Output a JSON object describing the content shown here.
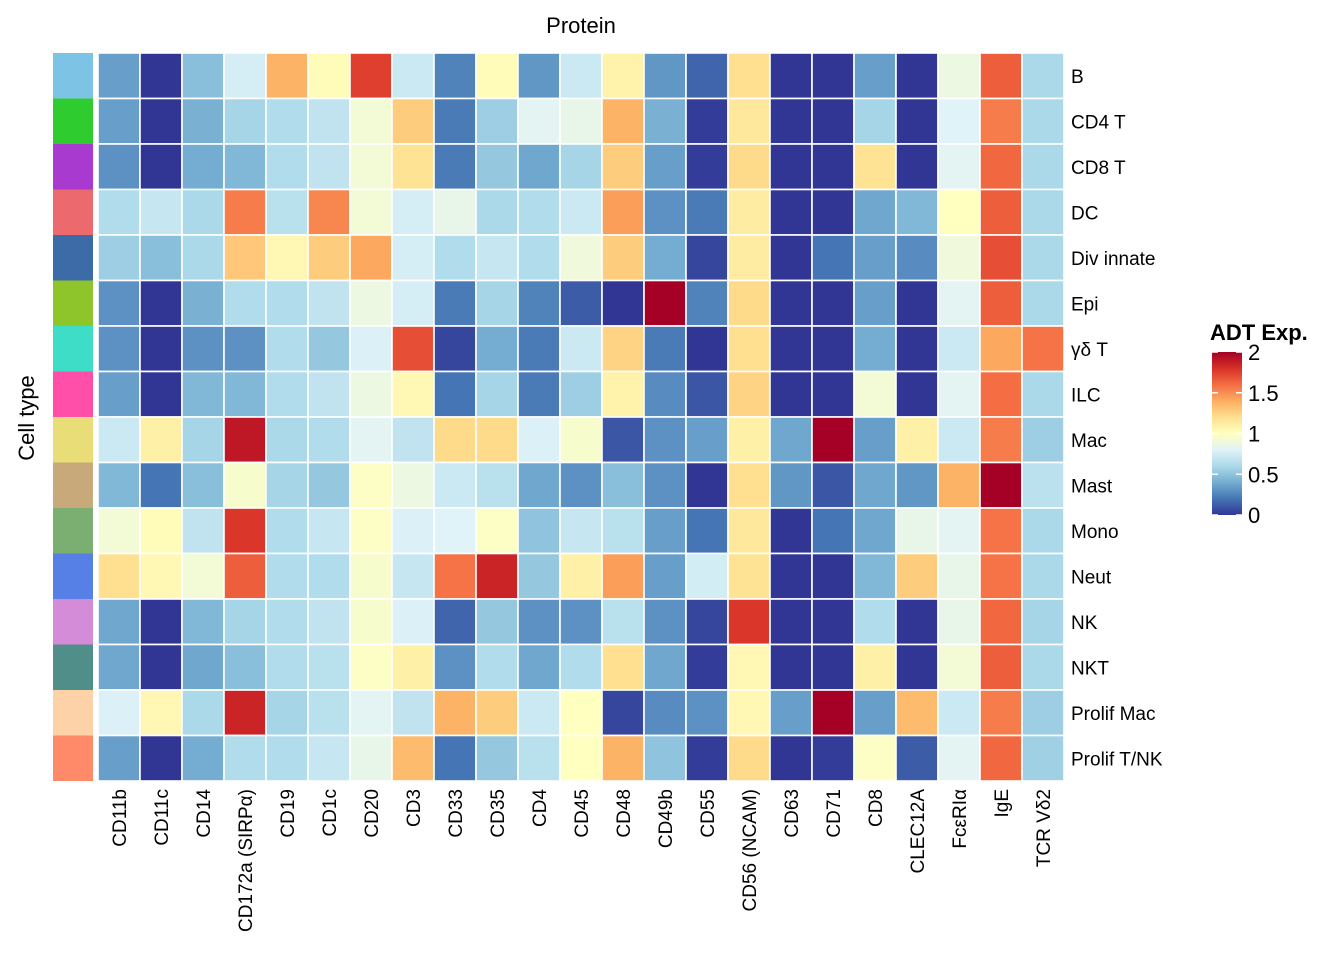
{
  "chart_data": {
    "type": "heatmap",
    "title": "Protein",
    "ylabel": "Cell type",
    "legend_title": "ADT Exp.",
    "legend_position": "right",
    "color_scale": {
      "name": "RdYlBu (reversed)",
      "range": [
        0,
        2
      ],
      "stops": [
        "#313695",
        "#4575b4",
        "#74add1",
        "#abd9e9",
        "#e0f3f8",
        "#ffffbf",
        "#fee090",
        "#fdae61",
        "#f46d43",
        "#d73027",
        "#a50026"
      ],
      "ticks": [
        0,
        0.5,
        1,
        1.5,
        2
      ],
      "tick_labels": [
        "0",
        "0.5",
        "1",
        "1.5",
        "2"
      ]
    },
    "columns": [
      "CD11b",
      "CD11c",
      "CD14",
      "CD172a (SIRPα)",
      "CD19",
      "CD1c",
      "CD20",
      "CD3",
      "CD33",
      "CD35",
      "CD4",
      "CD45",
      "CD48",
      "CD49b",
      "CD55",
      "CD56 (NCAM)",
      "CD63",
      "CD71",
      "CD8",
      "CLEC12A",
      "FcεRIα",
      "IgE",
      "TCR Vδ2"
    ],
    "rows": [
      "B",
      "CD4 T",
      "CD8 T",
      "DC",
      "Div innate",
      "Epi",
      "γδ T",
      "ILC",
      "Mac",
      "Mast",
      "Mono",
      "Neut",
      "NK",
      "NKT",
      "Prolif Mac",
      "Prolif T/NK"
    ],
    "row_annotation_colors": [
      "#7CC3E6",
      "#2ECC2E",
      "#A93ACF",
      "#EC6A6E",
      "#3D6BA8",
      "#8DC52A",
      "#3EDDC8",
      "#FF4FA8",
      "#E8DD76",
      "#C8A97A",
      "#7BAF72",
      "#5780E6",
      "#D58CD8",
      "#4F8E89",
      "#FDD2A8",
      "#FF8A6A"
    ],
    "values": [
      [
        0.35,
        0.0,
        0.48,
        0.76,
        1.38,
        1.02,
        1.75,
        0.72,
        0.25,
        1.02,
        0.32,
        0.72,
        1.08,
        0.32,
        0.15,
        1.2,
        0.0,
        0.0,
        0.35,
        0.0,
        0.88,
        1.65,
        0.6
      ],
      [
        0.35,
        0.0,
        0.42,
        0.58,
        0.62,
        0.68,
        0.92,
        1.28,
        0.22,
        0.55,
        0.82,
        0.85,
        1.38,
        0.42,
        0.02,
        1.15,
        0.0,
        0.0,
        0.58,
        0.0,
        0.8,
        1.55,
        0.6
      ],
      [
        0.3,
        0.0,
        0.4,
        0.45,
        0.62,
        0.68,
        0.92,
        1.18,
        0.22,
        0.52,
        0.38,
        0.58,
        1.28,
        0.35,
        0.02,
        1.22,
        0.0,
        0.0,
        1.18,
        0.0,
        0.82,
        1.62,
        0.6
      ],
      [
        0.62,
        0.7,
        0.6,
        1.55,
        0.65,
        1.52,
        0.92,
        0.76,
        0.85,
        0.6,
        0.62,
        0.72,
        1.45,
        0.3,
        0.22,
        1.12,
        0.0,
        0.0,
        0.38,
        0.45,
        1.0,
        1.65,
        0.6
      ],
      [
        0.55,
        0.48,
        0.6,
        1.3,
        1.05,
        1.28,
        1.42,
        0.76,
        0.62,
        0.7,
        0.62,
        0.9,
        1.28,
        0.4,
        0.05,
        1.12,
        0.0,
        0.2,
        0.35,
        0.28,
        0.9,
        1.7,
        0.6
      ],
      [
        0.3,
        0.0,
        0.42,
        0.62,
        0.62,
        0.68,
        0.88,
        0.76,
        0.22,
        0.58,
        0.25,
        0.12,
        0.0,
        2.0,
        0.25,
        1.22,
        0.0,
        0.0,
        0.35,
        0.0,
        0.82,
        1.65,
        0.6
      ],
      [
        0.3,
        0.0,
        0.3,
        0.3,
        0.62,
        0.52,
        0.78,
        1.7,
        0.05,
        0.4,
        0.22,
        0.72,
        1.25,
        0.22,
        0.0,
        1.2,
        0.0,
        0.0,
        0.4,
        0.0,
        0.72,
        1.42,
        1.58
      ],
      [
        0.35,
        0.0,
        0.45,
        0.45,
        0.62,
        0.68,
        0.88,
        1.05,
        0.2,
        0.58,
        0.22,
        0.55,
        1.08,
        0.28,
        0.1,
        1.25,
        0.0,
        0.0,
        0.92,
        0.0,
        0.82,
        1.6,
        0.6
      ],
      [
        0.72,
        1.1,
        0.58,
        1.9,
        0.6,
        0.62,
        0.82,
        0.68,
        1.22,
        1.22,
        0.78,
        0.95,
        0.1,
        0.3,
        0.35,
        1.1,
        0.38,
        2.0,
        0.35,
        1.1,
        0.72,
        1.55,
        0.55
      ],
      [
        0.45,
        0.2,
        0.48,
        0.95,
        0.58,
        0.52,
        0.98,
        0.88,
        0.72,
        0.65,
        0.38,
        0.3,
        0.48,
        0.3,
        0.0,
        1.2,
        0.32,
        0.1,
        0.38,
        0.32,
        1.38,
        2.0,
        0.66
      ],
      [
        0.92,
        1.02,
        0.68,
        1.78,
        0.62,
        0.7,
        0.98,
        0.78,
        0.8,
        0.98,
        0.5,
        0.7,
        0.65,
        0.35,
        0.2,
        1.15,
        0.0,
        0.2,
        0.38,
        0.85,
        0.82,
        1.58,
        0.6
      ],
      [
        1.2,
        1.05,
        0.92,
        1.65,
        0.62,
        0.62,
        0.95,
        0.7,
        1.58,
        1.85,
        0.52,
        1.1,
        1.45,
        0.35,
        0.75,
        1.18,
        0.0,
        0.0,
        0.45,
        1.28,
        0.85,
        1.58,
        0.6
      ],
      [
        0.38,
        0.0,
        0.45,
        0.58,
        0.62,
        0.68,
        0.95,
        0.78,
        0.15,
        0.52,
        0.3,
        0.3,
        0.65,
        0.3,
        0.05,
        1.78,
        0.0,
        0.0,
        0.62,
        0.0,
        0.85,
        1.62,
        0.58
      ],
      [
        0.38,
        0.0,
        0.38,
        0.48,
        0.62,
        0.65,
        0.98,
        1.1,
        0.3,
        0.62,
        0.38,
        0.62,
        1.2,
        0.38,
        0.02,
        1.05,
        0.0,
        0.0,
        1.1,
        0.0,
        0.92,
        1.65,
        0.6
      ],
      [
        0.78,
        1.05,
        0.6,
        1.85,
        0.58,
        0.65,
        0.82,
        0.68,
        1.38,
        1.28,
        0.72,
        1.0,
        0.05,
        0.28,
        0.3,
        1.05,
        0.35,
        2.0,
        0.35,
        1.35,
        0.72,
        1.55,
        0.55
      ],
      [
        0.35,
        0.0,
        0.4,
        0.62,
        0.62,
        0.7,
        0.85,
        1.35,
        0.2,
        0.52,
        0.65,
        1.0,
        1.38,
        0.5,
        0.02,
        1.22,
        0.0,
        0.02,
        0.98,
        0.12,
        0.82,
        1.62,
        0.56
      ]
    ]
  }
}
